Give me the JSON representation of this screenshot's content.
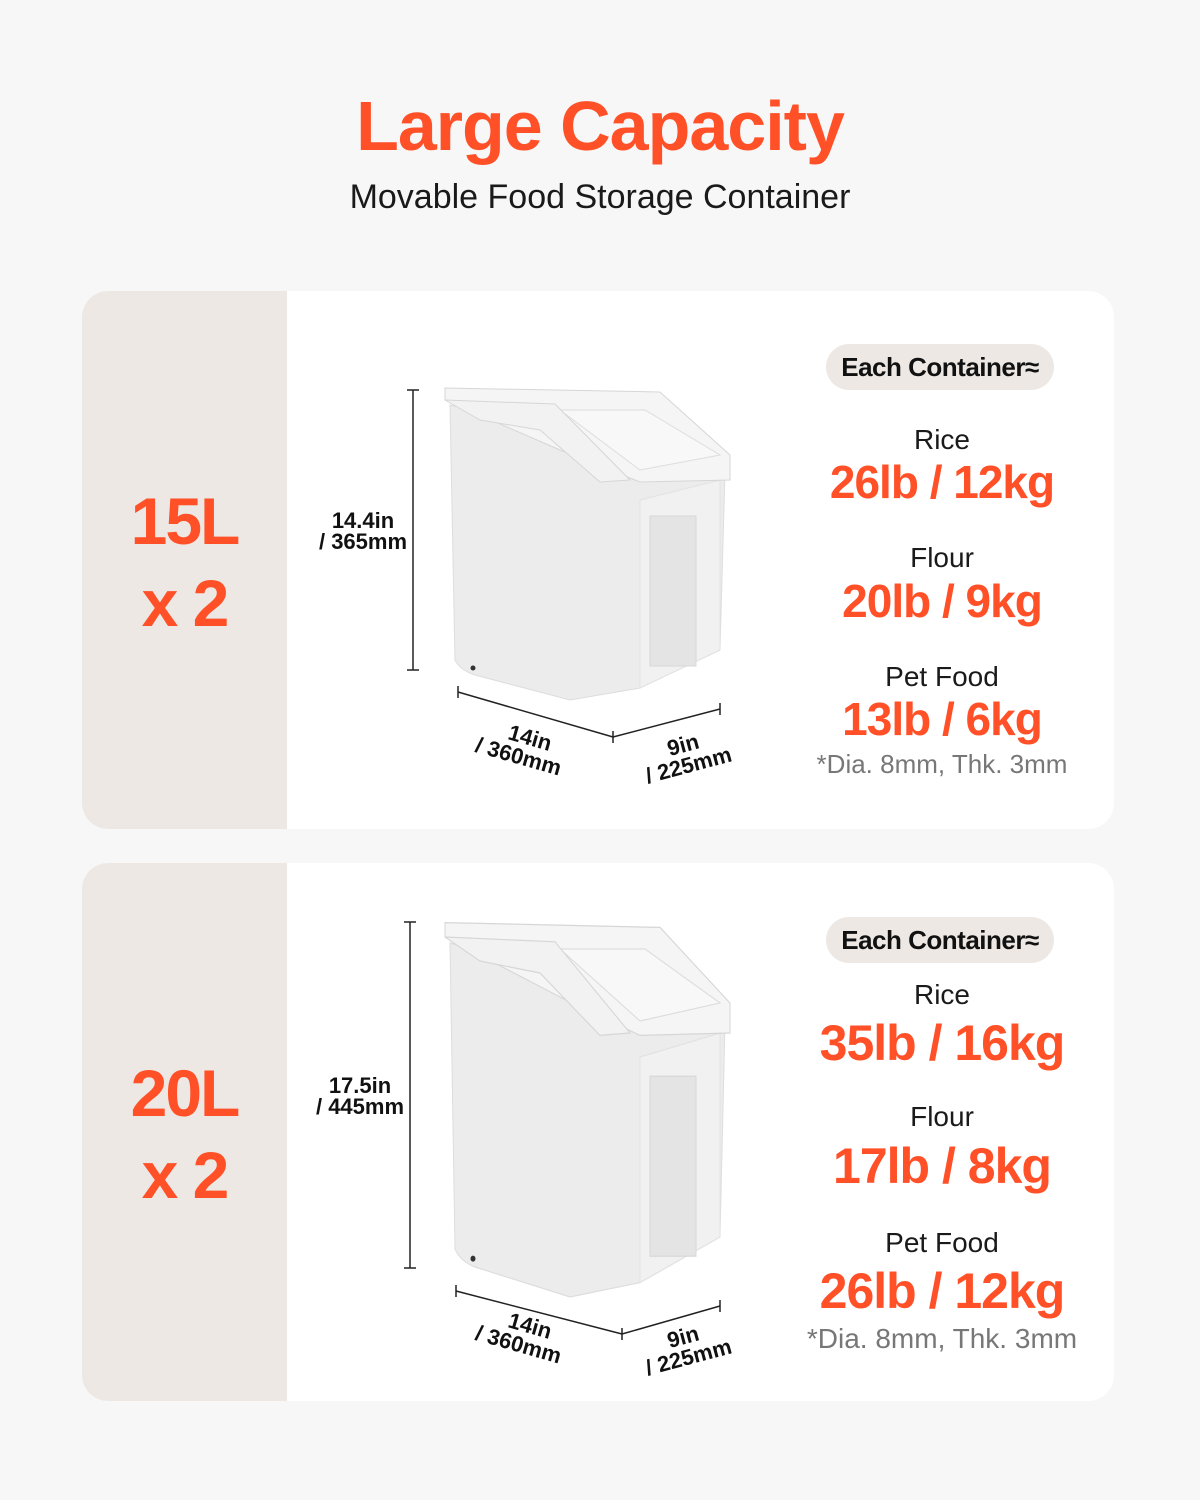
{
  "header": {
    "title": "Large Capacity",
    "subtitle": "Movable Food Storage Container"
  },
  "accent_color": "#ff5028",
  "cards": [
    {
      "capacity": "15L",
      "quantity": "x 2",
      "dimensions": {
        "height_in": "14.4in",
        "height_mm": "/ 365mm",
        "length_in": "14in",
        "length_mm": "/ 360mm",
        "width_in": "9in",
        "width_mm": "/ 225mm"
      },
      "badge": "Each Container≈",
      "items": [
        {
          "label": "Rice",
          "value": "26lb / 12kg"
        },
        {
          "label": "Flour",
          "value": "20lb / 9kg"
        },
        {
          "label": "Pet Food",
          "value": "13lb / 6kg"
        }
      ],
      "note": "*Dia. 8mm, Thk. 3mm"
    },
    {
      "capacity": "20L",
      "quantity": "x 2",
      "dimensions": {
        "height_in": "17.5in",
        "height_mm": "/ 445mm",
        "length_in": "14in",
        "length_mm": "/ 360mm",
        "width_in": "9in",
        "width_mm": "/ 225mm"
      },
      "badge": "Each Container≈",
      "items": [
        {
          "label": "Rice",
          "value": "35lb / 16kg"
        },
        {
          "label": "Flour",
          "value": "17lb / 8kg"
        },
        {
          "label": "Pet Food",
          "value": "26lb / 12kg"
        }
      ],
      "note": "*Dia. 8mm, Thk. 3mm"
    }
  ]
}
